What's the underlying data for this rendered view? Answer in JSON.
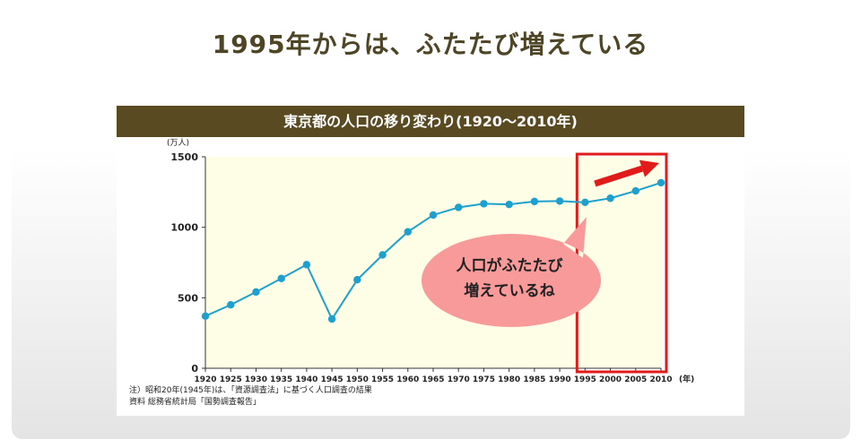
{
  "page_title": "1995年からは、ふたたび増えている",
  "colors": {
    "title": "#4e4426",
    "header_bg": "#5a4a22",
    "plot_bg": "#fefee6",
    "line": "#1ea0cf",
    "highlight_border": "#e11a1a",
    "arrow": "#e11a1a",
    "bubble": "#f89a9a"
  },
  "chart_data": {
    "type": "line",
    "title": "東京都の人口の移り変わり(1920〜2010年)",
    "ylabel": "(万人)",
    "xlabel": "(年)",
    "ylim": [
      0,
      1500
    ],
    "yticks": [
      0,
      500,
      1000,
      1500
    ],
    "x": [
      1920,
      1925,
      1930,
      1935,
      1940,
      1945,
      1950,
      1955,
      1960,
      1965,
      1970,
      1975,
      1980,
      1985,
      1990,
      1995,
      2000,
      2005,
      2010
    ],
    "series": [
      {
        "values": [
          370,
          450,
          541,
          637,
          735,
          349,
          628,
          804,
          968,
          1087,
          1141,
          1167,
          1162,
          1183,
          1186,
          1177,
          1206,
          1258,
          1316
        ]
      }
    ],
    "highlight_range": [
      1995,
      2010
    ],
    "grid": false
  },
  "annotation": {
    "line1": "人口がふたたび",
    "line2": "増えているね"
  },
  "notes": {
    "line1": "注）昭和20年(1945年)は、「資源調査法」に基づく人口調査の結果",
    "line2": "資料 総務省統計局「国勢調査報告」"
  }
}
